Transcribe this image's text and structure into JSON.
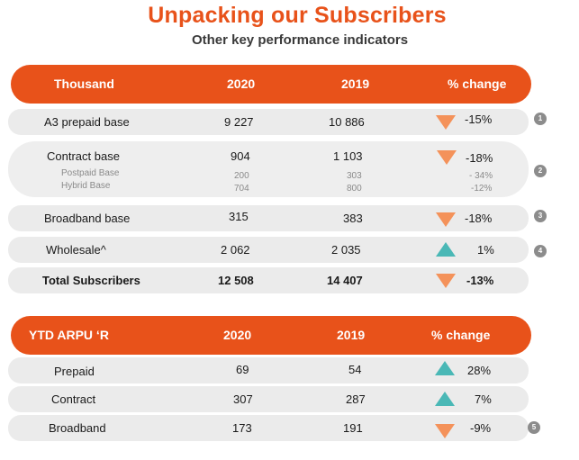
{
  "title": "Unpacking our Subscribers",
  "subtitle": "Other key performance indicators",
  "subscribers": {
    "header": {
      "label": "Thousand",
      "y2020": "2020",
      "y2019": "2019",
      "change": "% change"
    },
    "rows": [
      {
        "label": "A3 prepaid base",
        "y2020": "9 227",
        "y2019": "10 886",
        "change": "-15%",
        "trend": "down",
        "note": "1"
      },
      {
        "label": "Contract base",
        "y2020": "904",
        "y2019": "1 103",
        "change": "-18%",
        "trend": "down",
        "note": "2",
        "subrows": [
          {
            "label": "Postpaid Base",
            "y2020": "200",
            "y2019": "303",
            "change": "- 34%"
          },
          {
            "label": "Hybrid Base",
            "y2020": "704",
            "y2019": "800",
            "change": "-12%"
          }
        ]
      },
      {
        "label": "Broadband base",
        "y2020": "315",
        "y2019": "383",
        "change": "-18%",
        "trend": "down",
        "note": "3"
      },
      {
        "label": "Wholesale^",
        "y2020": "2 062",
        "y2019": "2 035",
        "change": "1%",
        "trend": "up",
        "note": "4"
      },
      {
        "label": "Total Subscribers",
        "y2020": "12 508",
        "y2019": "14 407",
        "change": "-13%",
        "trend": "down"
      }
    ]
  },
  "arpu": {
    "header": {
      "label": "YTD ARPU ‘R",
      "y2020": "2020",
      "y2019": "2019",
      "change": "% change"
    },
    "rows": [
      {
        "label": "Prepaid",
        "y2020": "69",
        "y2019": "54",
        "change": "28%",
        "trend": "up"
      },
      {
        "label": "Contract",
        "y2020": "307",
        "y2019": "287",
        "change": "7%",
        "trend": "up"
      },
      {
        "label": "Broadband",
        "y2020": "173",
        "y2019": "191",
        "change": "-9%",
        "trend": "down",
        "note": "5"
      }
    ]
  },
  "colors": {
    "accent": "#e8521a",
    "down": "#f4925a",
    "up": "#4ab8b6",
    "row_bg": "#ebebeb"
  },
  "icons": {
    "down": "triangle-down-icon",
    "up": "triangle-up-icon"
  }
}
